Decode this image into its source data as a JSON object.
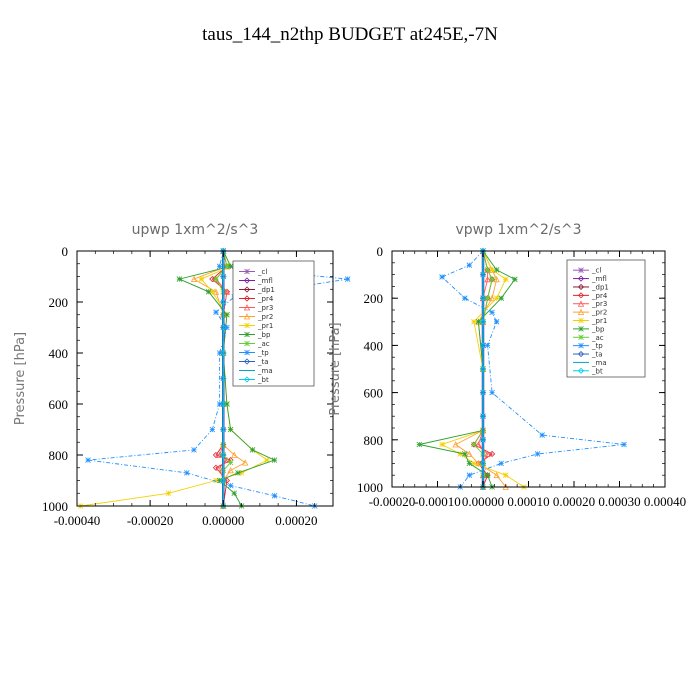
{
  "figure_title": "taus_144_n2thp  BUDGET at245E,-7N",
  "chart_data": [
    {
      "type": "line",
      "title": "upwp   1xm^2/s^3",
      "ylabel": "Pressure [hPa]",
      "xlabel": "",
      "xlim": [
        -0.0004,
        0.0003
      ],
      "ylim": [
        1000,
        0
      ],
      "xticks": [
        "-0.00040",
        "-0.00020",
        "0.00000",
        "0.00020"
      ],
      "xtick_values": [
        -0.0004,
        -0.0002,
        0,
        0.0002
      ],
      "yticks": [
        0,
        200,
        400,
        600,
        800,
        1000
      ],
      "legend_position": "top-right",
      "series": [
        {
          "name": "_cl",
          "color": "#9b59b6",
          "marker": "x",
          "x": [
            0,
            0,
            0,
            0,
            0,
            0,
            0,
            0,
            0,
            0,
            0
          ],
          "y": [
            0,
            100,
            200,
            300,
            400,
            500,
            600,
            700,
            800,
            900,
            1000
          ]
        },
        {
          "name": "_mfl",
          "color": "#7b1fa2",
          "marker": "diamond",
          "x": [
            0,
            0,
            0,
            0,
            0,
            0,
            0,
            0,
            0,
            0,
            0
          ],
          "y": [
            0,
            100,
            200,
            300,
            400,
            500,
            600,
            700,
            800,
            900,
            1000
          ]
        },
        {
          "name": "_dp1",
          "color": "#8b1a3a",
          "marker": "diamond",
          "x": [
            0,
            0,
            0,
            0,
            0,
            0,
            0,
            0,
            0,
            0,
            0
          ],
          "y": [
            0,
            100,
            200,
            300,
            400,
            500,
            600,
            700,
            800,
            900,
            1000
          ]
        },
        {
          "name": "_pr4",
          "color": "#e0202a",
          "marker": "diamond",
          "x": [
            0,
            1e-05,
            -3e-05,
            1e-05,
            0,
            0,
            0,
            0,
            -2e-05,
            2e-05,
            -2e-05,
            1e-05,
            0
          ],
          "y": [
            0,
            60,
            110,
            160,
            250,
            400,
            600,
            760,
            800,
            820,
            850,
            900,
            1000
          ]
        },
        {
          "name": "_pr3",
          "color": "#ff5a5a",
          "marker": "tri",
          "x": [
            0,
            1e-05,
            -2e-05,
            1e-05,
            0,
            0,
            0,
            0,
            -1e-05,
            1e-05,
            -1e-05,
            0,
            0
          ],
          "y": [
            0,
            60,
            110,
            160,
            250,
            400,
            600,
            760,
            800,
            820,
            850,
            900,
            1000
          ]
        },
        {
          "name": "_pr2",
          "color": "#ffa030",
          "marker": "tri",
          "x": [
            0,
            1e-05,
            -8e-05,
            -2e-05,
            0,
            0,
            0,
            0,
            3e-05,
            6e-05,
            2e-05,
            0,
            0
          ],
          "y": [
            0,
            60,
            110,
            160,
            250,
            400,
            600,
            760,
            800,
            830,
            860,
            900,
            1000
          ]
        },
        {
          "name": "_pr1",
          "color": "#f5d000",
          "marker": "x",
          "x": [
            0,
            2e-05,
            -6e-05,
            -3e-05,
            1e-05,
            0,
            1e-05,
            2e-05,
            8e-05,
            0.00012,
            5e-05,
            -2e-05,
            -0.00015,
            -0.00039
          ],
          "y": [
            0,
            60,
            110,
            160,
            250,
            400,
            600,
            700,
            780,
            820,
            870,
            900,
            950,
            1000
          ]
        },
        {
          "name": "_bp",
          "color": "#2fa02f",
          "marker": "x",
          "x": [
            0,
            2e-05,
            -0.00012,
            -4e-05,
            1e-05,
            0,
            1e-05,
            2e-05,
            8e-05,
            0.00014,
            4e-05,
            -1e-05,
            3e-05,
            5e-05
          ],
          "y": [
            0,
            60,
            110,
            160,
            250,
            400,
            600,
            700,
            780,
            820,
            870,
            900,
            950,
            1000
          ]
        },
        {
          "name": "_ac",
          "color": "#66cc33",
          "marker": "x",
          "x": [
            0,
            1e-05,
            -2e-05,
            0,
            0,
            0,
            0,
            0,
            0,
            2e-05,
            0,
            0,
            0
          ],
          "y": [
            0,
            60,
            110,
            160,
            250,
            400,
            600,
            760,
            800,
            830,
            860,
            900,
            1000
          ]
        },
        {
          "name": "_tp",
          "color": "#1e90ff",
          "marker": "x",
          "x": [
            0,
            -1e-05,
            0.00034,
            3e-05,
            -2e-05,
            1e-05,
            -1e-05,
            -1e-05,
            -3e-05,
            -8e-05,
            -0.00037,
            -0.0001,
            2e-05,
            0.00014,
            0.00025
          ],
          "y": [
            0,
            60,
            110,
            180,
            240,
            300,
            400,
            600,
            700,
            780,
            820,
            870,
            920,
            960,
            1000
          ]
        },
        {
          "name": "_ta",
          "color": "#3060c0",
          "marker": "diamond",
          "x": [
            0,
            0,
            0,
            0,
            0,
            0,
            0,
            0,
            0,
            0,
            0
          ],
          "y": [
            0,
            100,
            200,
            300,
            400,
            500,
            600,
            700,
            800,
            900,
            1000
          ]
        },
        {
          "name": "_ma",
          "color": "#00a6c8",
          "marker": "none",
          "x": [
            0,
            0,
            0,
            0,
            0,
            0,
            0,
            0,
            0,
            0,
            0
          ],
          "y": [
            0,
            100,
            200,
            300,
            400,
            500,
            600,
            700,
            800,
            900,
            1000
          ]
        },
        {
          "name": "_bt",
          "color": "#00ccee",
          "marker": "diamond",
          "x": [
            0,
            0,
            0,
            0,
            0,
            0,
            0,
            0,
            0,
            0,
            0
          ],
          "y": [
            0,
            100,
            200,
            300,
            400,
            500,
            600,
            700,
            800,
            900,
            1000
          ]
        }
      ]
    },
    {
      "type": "line",
      "title": "vpwp   1xm^2/s^3",
      "ylabel": "Pressure [hPa]",
      "xlabel": "",
      "xlim": [
        -0.0002,
        0.0004
      ],
      "ylim": [
        1000,
        0
      ],
      "xticks": [
        "-0.00020",
        "-0.00010",
        "0.00000",
        "0.00010",
        "0.00020",
        "0.00030",
        "0.00040"
      ],
      "xtick_values": [
        -0.0002,
        -0.0001,
        0,
        0.0001,
        0.0002,
        0.0003,
        0.0004
      ],
      "yticks": [
        0,
        200,
        400,
        600,
        800,
        1000
      ],
      "legend_position": "top-right",
      "series": [
        {
          "name": "_cl",
          "color": "#9b59b6",
          "marker": "x",
          "x": [
            0,
            0,
            0,
            0,
            0,
            0,
            0,
            0,
            0,
            0,
            0
          ],
          "y": [
            0,
            100,
            200,
            300,
            400,
            500,
            600,
            700,
            800,
            900,
            1000
          ]
        },
        {
          "name": "_mfl",
          "color": "#7b1fa2",
          "marker": "diamond",
          "x": [
            0,
            0,
            0,
            0,
            0,
            0,
            0,
            0,
            0,
            0,
            0
          ],
          "y": [
            0,
            100,
            200,
            300,
            400,
            500,
            600,
            700,
            800,
            900,
            1000
          ]
        },
        {
          "name": "_dp1",
          "color": "#8b1a3a",
          "marker": "diamond",
          "x": [
            0,
            0,
            0,
            0,
            0,
            0,
            0,
            0,
            0,
            0,
            0
          ],
          "y": [
            0,
            100,
            200,
            300,
            400,
            500,
            600,
            700,
            800,
            900,
            1000
          ]
        },
        {
          "name": "_pr4",
          "color": "#e0202a",
          "marker": "diamond",
          "x": [
            0,
            1e-05,
            2e-05,
            1e-05,
            0,
            0,
            0,
            -2e-05,
            2e-05,
            -1e-05,
            1e-05,
            0
          ],
          "y": [
            0,
            80,
            120,
            200,
            300,
            500,
            760,
            820,
            860,
            900,
            950,
            1000
          ]
        },
        {
          "name": "_pr3",
          "color": "#ff5a5a",
          "marker": "tri",
          "x": [
            0,
            1e-05,
            1e-05,
            0,
            0,
            0,
            0,
            -1e-05,
            1e-05,
            0,
            0,
            0
          ],
          "y": [
            0,
            80,
            120,
            200,
            300,
            500,
            760,
            820,
            860,
            900,
            950,
            1000
          ]
        },
        {
          "name": "_pr2",
          "color": "#ffa030",
          "marker": "tri",
          "x": [
            0,
            2e-05,
            3e-05,
            2e-05,
            -1e-05,
            0,
            0,
            -6e-05,
            -3e-05,
            -1e-05,
            3e-05,
            5e-05
          ],
          "y": [
            0,
            80,
            120,
            200,
            300,
            500,
            760,
            820,
            860,
            900,
            950,
            1000
          ]
        },
        {
          "name": "_pr1",
          "color": "#f5d000",
          "marker": "x",
          "x": [
            0,
            2e-05,
            5e-05,
            3e-05,
            -2e-05,
            0,
            0,
            -9e-05,
            -5e-05,
            -2e-05,
            5e-05,
            9e-05
          ],
          "y": [
            0,
            80,
            120,
            200,
            300,
            500,
            760,
            820,
            860,
            900,
            950,
            1000
          ]
        },
        {
          "name": "_bp",
          "color": "#2fa02f",
          "marker": "x",
          "x": [
            0,
            3e-05,
            7e-05,
            4e-05,
            -1e-05,
            0,
            0,
            -0.00014,
            -4e-05,
            -3e-05,
            1e-05,
            2e-05
          ],
          "y": [
            0,
            80,
            120,
            200,
            300,
            500,
            760,
            820,
            860,
            900,
            950,
            1000
          ]
        },
        {
          "name": "_ac",
          "color": "#66cc33",
          "marker": "x",
          "x": [
            0,
            1e-05,
            2e-05,
            1e-05,
            0,
            0,
            0,
            -2e-05,
            0,
            0,
            0,
            0
          ],
          "y": [
            0,
            80,
            120,
            200,
            300,
            500,
            760,
            820,
            860,
            900,
            950,
            1000
          ]
        },
        {
          "name": "_tp",
          "color": "#1e90ff",
          "marker": "x",
          "x": [
            0,
            -3e-05,
            -9e-05,
            -4e-05,
            2e-05,
            3e-05,
            1e-05,
            2e-05,
            0.00013,
            0.00031,
            0.00012,
            4e-05,
            -3e-05,
            -5e-05
          ],
          "y": [
            0,
            60,
            110,
            200,
            260,
            300,
            400,
            600,
            780,
            820,
            860,
            900,
            950,
            1000
          ]
        },
        {
          "name": "_ta",
          "color": "#3060c0",
          "marker": "diamond",
          "x": [
            0,
            0,
            0,
            0,
            0,
            0,
            0,
            0,
            0,
            0,
            0
          ],
          "y": [
            0,
            100,
            200,
            300,
            400,
            500,
            600,
            700,
            800,
            900,
            1000
          ]
        },
        {
          "name": "_ma",
          "color": "#00a6c8",
          "marker": "none",
          "x": [
            0,
            0,
            0,
            0,
            0,
            0,
            0,
            0,
            0,
            0,
            0
          ],
          "y": [
            0,
            100,
            200,
            300,
            400,
            500,
            600,
            700,
            800,
            900,
            1000
          ]
        },
        {
          "name": "_bt",
          "color": "#00ccee",
          "marker": "diamond",
          "x": [
            0,
            0,
            0,
            0,
            0,
            0,
            0,
            0,
            0,
            0,
            0
          ],
          "y": [
            0,
            100,
            200,
            300,
            400,
            500,
            600,
            700,
            800,
            900,
            1000
          ]
        }
      ]
    }
  ]
}
